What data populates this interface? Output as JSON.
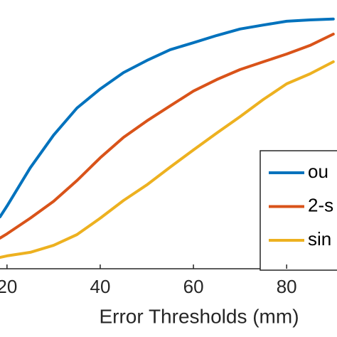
{
  "chart_data": {
    "type": "line",
    "x_label": "Error Thresholds (mm)",
    "x": [
      18.5,
      20,
      25,
      30,
      35,
      40,
      45,
      50,
      55,
      60,
      65,
      70,
      75,
      80,
      85,
      90
    ],
    "series": [
      {
        "name": "ou",
        "color": "#0072bd",
        "values": [
          19.3,
          23.3,
          37.6,
          49.7,
          59.8,
          66.9,
          73.0,
          77.5,
          81.5,
          84.1,
          86.8,
          89.2,
          90.7,
          92.1,
          92.6,
          92.9
        ]
      },
      {
        "name": "2-s",
        "color": "#d95319",
        "values": [
          11.4,
          13.0,
          18.8,
          25.1,
          32.8,
          41.3,
          48.9,
          55.0,
          60.6,
          66.1,
          70.4,
          74.1,
          77.0,
          79.9,
          83.1,
          87.3
        ]
      },
      {
        "name": "sin",
        "color": "#edb120",
        "values": [
          4.2,
          4.8,
          6.1,
          8.7,
          12.7,
          18.8,
          25.4,
          31.2,
          37.8,
          44.2,
          50.5,
          56.6,
          63.0,
          68.8,
          72.5,
          77.0
        ]
      }
    ],
    "xlim": [
      18.5,
      90.8
    ],
    "ylim": [
      0,
      100
    ],
    "xticks": [
      20,
      40,
      60,
      80
    ],
    "legend": "lower-right"
  }
}
